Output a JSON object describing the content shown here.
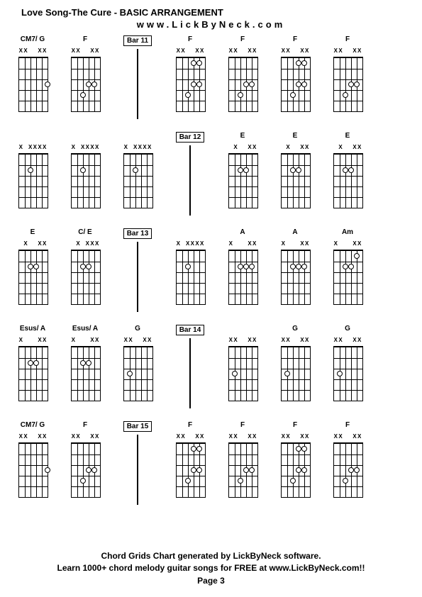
{
  "title": "Love Song-The Cure - BASIC ARRANGEMENT",
  "subtitle": "www.LickByNeck.com",
  "footer": {
    "line1": "Chord Grids Chart generated by LickByNeck software.",
    "line2": "Learn 1000+ chord melody guitar songs for FREE at www.LickByNeck.com!!",
    "page": "Page 3"
  },
  "layout": {
    "cols": 8,
    "string_spacing": 8,
    "fret_spacing": 15,
    "frets": 5
  },
  "rows": [
    {
      "cells": [
        {
          "type": "chord",
          "label": "CM7/ G",
          "top": [
            "X",
            "X",
            "",
            "",
            "X",
            "X"
          ],
          "dots": [
            [
              3,
              5
            ]
          ],
          "fretnum": {
            "fret": 3,
            "label": ""
          }
        },
        {
          "type": "chord",
          "label": "F",
          "top": [
            "X",
            "X",
            "",
            "",
            "X",
            "X"
          ],
          "dots": [
            [
              3,
              3
            ],
            [
              4,
              2
            ],
            [
              3,
              4
            ]
          ],
          "fretnum": null
        },
        {
          "type": "bar",
          "label": "Bar 11"
        },
        {
          "type": "chord",
          "label": "F",
          "top": [
            "X",
            "X",
            "",
            "",
            "X",
            "X"
          ],
          "dots": [
            [
              3,
              3
            ],
            [
              4,
              2
            ],
            [
              3,
              4
            ],
            [
              1,
              3
            ],
            [
              1,
              4
            ]
          ],
          "fretnum": null
        },
        {
          "type": "chord",
          "label": "F",
          "top": [
            "X",
            "X",
            "",
            "",
            "X",
            "X"
          ],
          "dots": [
            [
              3,
              3
            ],
            [
              4,
              2
            ],
            [
              3,
              4
            ]
          ],
          "fretnum": null
        },
        {
          "type": "chord",
          "label": "F",
          "top": [
            "X",
            "X",
            "",
            "",
            "X",
            "X"
          ],
          "dots": [
            [
              3,
              3
            ],
            [
              4,
              2
            ],
            [
              3,
              4
            ],
            [
              1,
              3
            ],
            [
              1,
              4
            ]
          ],
          "fretnum": null
        },
        {
          "type": "chord",
          "label": "F",
          "top": [
            "X",
            "X",
            "",
            "",
            "X",
            "X"
          ],
          "dots": [
            [
              3,
              3
            ],
            [
              4,
              2
            ],
            [
              3,
              4
            ]
          ],
          "fretnum": null
        },
        {
          "type": "spacer"
        }
      ]
    },
    {
      "cells": [
        {
          "type": "chord",
          "label": "",
          "top": [
            "X",
            "",
            "X",
            "X",
            "X",
            "X"
          ],
          "dots": [
            [
              2,
              2
            ]
          ],
          "fretnum": null
        },
        {
          "type": "chord",
          "label": "",
          "top": [
            "X",
            "",
            "X",
            "X",
            "X",
            "X"
          ],
          "dots": [
            [
              2,
              2
            ]
          ],
          "fretnum": null
        },
        {
          "type": "chord",
          "label": "",
          "top": [
            "X",
            "",
            "X",
            "X",
            "X",
            "X"
          ],
          "dots": [
            [
              2,
              2
            ]
          ],
          "fretnum": null
        },
        {
          "type": "bar",
          "label": "Bar 12"
        },
        {
          "type": "chord",
          "label": "E",
          "top": [
            "",
            "X",
            "",
            "",
            "X",
            "X"
          ],
          "dots": [
            [
              2,
              2
            ],
            [
              2,
              3
            ]
          ],
          "fretnum": null
        },
        {
          "type": "chord",
          "label": "E",
          "top": [
            "",
            "X",
            "",
            "",
            "X",
            "X"
          ],
          "dots": [
            [
              2,
              2
            ],
            [
              2,
              3
            ]
          ],
          "fretnum": null
        },
        {
          "type": "chord",
          "label": "E",
          "top": [
            "",
            "X",
            "",
            "",
            "X",
            "X"
          ],
          "dots": [
            [
              2,
              2
            ],
            [
              2,
              3
            ]
          ],
          "fretnum": null
        },
        {
          "type": "spacer"
        }
      ]
    },
    {
      "cells": [
        {
          "type": "chord",
          "label": "E",
          "top": [
            "",
            "X",
            "",
            "",
            "X",
            "X"
          ],
          "dots": [
            [
              2,
              2
            ],
            [
              2,
              3
            ]
          ],
          "fretnum": null
        },
        {
          "type": "chord",
          "label": "C/ E",
          "top": [
            "",
            "X",
            "",
            "X",
            "X",
            "X"
          ],
          "dots": [
            [
              2,
              2
            ],
            [
              2,
              3
            ]
          ],
          "fretnum": null
        },
        {
          "type": "bar",
          "label": "Bar 13"
        },
        {
          "type": "chord",
          "label": "",
          "top": [
            "X",
            "",
            "X",
            "X",
            "X",
            "X"
          ],
          "dots": [
            [
              2,
              2
            ]
          ],
          "fretnum": null
        },
        {
          "type": "chord",
          "label": "A",
          "top": [
            "X",
            "",
            "",
            "",
            "X",
            "X"
          ],
          "dots": [
            [
              2,
              2
            ],
            [
              2,
              3
            ],
            [
              2,
              4
            ]
          ],
          "fretnum": null
        },
        {
          "type": "chord",
          "label": "A",
          "top": [
            "X",
            "",
            "",
            "",
            "X",
            "X"
          ],
          "dots": [
            [
              2,
              2
            ],
            [
              2,
              3
            ],
            [
              2,
              4
            ]
          ],
          "fretnum": null
        },
        {
          "type": "chord",
          "label": "Am",
          "top": [
            "X",
            "",
            "",
            "",
            "X",
            "X"
          ],
          "dots": [
            [
              2,
              2
            ],
            [
              2,
              3
            ],
            [
              1,
              4
            ]
          ],
          "fretnum": null
        },
        {
          "type": "spacer"
        }
      ]
    },
    {
      "cells": [
        {
          "type": "chord",
          "label": "Esus/ A",
          "top": [
            "X",
            "",
            "",
            "",
            "X",
            "X"
          ],
          "dots": [
            [
              2,
              2
            ],
            [
              2,
              3
            ]
          ],
          "fretnum": null
        },
        {
          "type": "chord",
          "label": "Esus/ A",
          "top": [
            "X",
            "",
            "",
            "",
            "X",
            "X"
          ],
          "dots": [
            [
              2,
              2
            ],
            [
              2,
              3
            ]
          ],
          "fretnum": null
        },
        {
          "type": "chord",
          "label": "G",
          "top": [
            "X",
            "X",
            "",
            "",
            "X",
            "X"
          ],
          "dots": [
            [
              3,
              1
            ]
          ],
          "fretnum": null
        },
        {
          "type": "bar",
          "label": "Bar 14"
        },
        {
          "type": "chord",
          "label": "",
          "top": [
            "X",
            "X",
            "",
            "",
            "X",
            "X"
          ],
          "dots": [
            [
              3,
              1
            ]
          ],
          "fretnum": null
        },
        {
          "type": "chord",
          "label": "G",
          "top": [
            "X",
            "X",
            "",
            "",
            "X",
            "X"
          ],
          "dots": [
            [
              3,
              1
            ]
          ],
          "fretnum": null
        },
        {
          "type": "chord",
          "label": "G",
          "top": [
            "X",
            "X",
            "",
            "",
            "X",
            "X"
          ],
          "dots": [
            [
              3,
              1
            ]
          ],
          "fretnum": null
        },
        {
          "type": "spacer"
        }
      ]
    },
    {
      "cells": [
        {
          "type": "chord",
          "label": "CM7/ G",
          "top": [
            "X",
            "X",
            "",
            "",
            "X",
            "X"
          ],
          "dots": [
            [
              3,
              5
            ]
          ],
          "fretnum": null
        },
        {
          "type": "chord",
          "label": "F",
          "top": [
            "X",
            "X",
            "",
            "",
            "X",
            "X"
          ],
          "dots": [
            [
              3,
              3
            ],
            [
              4,
              2
            ],
            [
              3,
              4
            ]
          ],
          "fretnum": null
        },
        {
          "type": "bar",
          "label": "Bar 15"
        },
        {
          "type": "chord",
          "label": "F",
          "top": [
            "X",
            "X",
            "",
            "",
            "X",
            "X"
          ],
          "dots": [
            [
              3,
              3
            ],
            [
              4,
              2
            ],
            [
              3,
              4
            ],
            [
              1,
              3
            ],
            [
              1,
              4
            ]
          ],
          "fretnum": null
        },
        {
          "type": "chord",
          "label": "F",
          "top": [
            "X",
            "X",
            "",
            "",
            "X",
            "X"
          ],
          "dots": [
            [
              3,
              3
            ],
            [
              4,
              2
            ],
            [
              3,
              4
            ]
          ],
          "fretnum": null
        },
        {
          "type": "chord",
          "label": "F",
          "top": [
            "X",
            "X",
            "",
            "",
            "X",
            "X"
          ],
          "dots": [
            [
              3,
              3
            ],
            [
              4,
              2
            ],
            [
              3,
              4
            ],
            [
              1,
              3
            ],
            [
              1,
              4
            ]
          ],
          "fretnum": null
        },
        {
          "type": "chord",
          "label": "F",
          "top": [
            "X",
            "X",
            "",
            "",
            "X",
            "X"
          ],
          "dots": [
            [
              3,
              3
            ],
            [
              4,
              2
            ],
            [
              3,
              4
            ]
          ],
          "fretnum": null
        },
        {
          "type": "spacer"
        }
      ]
    }
  ]
}
